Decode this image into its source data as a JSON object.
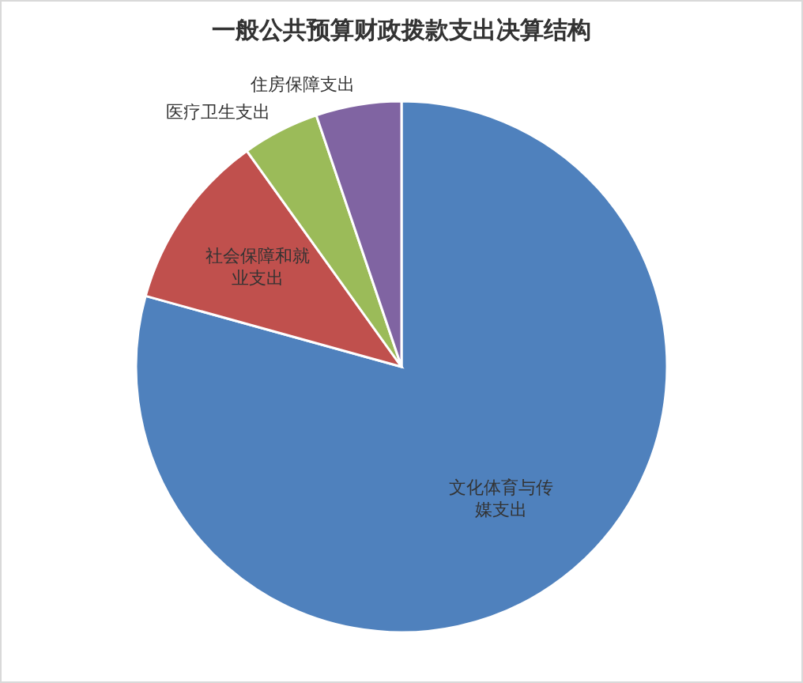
{
  "chart_data": {
    "type": "pie",
    "title": "一般公共预算财政拨款支出决算结构",
    "categories": [
      "文化体育与传媒支出",
      "社会保障和就业支出",
      "医疗卫生支出",
      "住房保障支出"
    ],
    "values": [
      79.3,
      10.8,
      4.7,
      5.2
    ],
    "colors": [
      "#4f81bd",
      "#c0504d",
      "#9bbb59",
      "#8064a2"
    ]
  }
}
